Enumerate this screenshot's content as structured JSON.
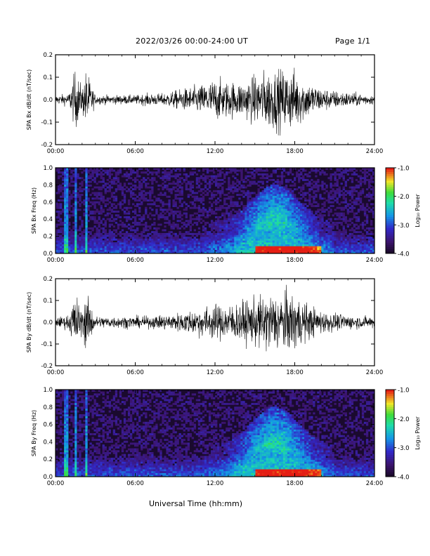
{
  "header": {
    "title": "2022/03/26  00:00-24:00 UT",
    "page": "Page 1/1"
  },
  "xlabel_bottom": "Universal Time (hh:mm)",
  "colors": {
    "background": "#ffffff",
    "trace": "#000000",
    "spectrogram_background": "#1a0a2e"
  },
  "chart_data": [
    {
      "type": "line",
      "title": "",
      "ylabel": "SPA Bx dB/dt (nT/sec)",
      "xlabel": "",
      "x_tick_labels": [
        "00:00",
        "06:00",
        "12:00",
        "18:00",
        "24:00"
      ],
      "xlim_hours": [
        0,
        24
      ],
      "ylim": [
        -0.2,
        0.2
      ],
      "y_ticks": [
        -0.2,
        -0.1,
        0.0,
        0.1,
        0.2
      ],
      "y_tick_labels": [
        "-0.2",
        "-0.1",
        "0.0",
        "0.1",
        "0.2"
      ],
      "series": [
        {
          "x_hours": [
            0,
            1,
            1.5,
            2,
            2.3,
            3,
            4,
            5,
            6,
            7,
            8,
            9,
            10,
            11,
            12,
            13,
            14,
            15,
            16,
            17,
            17.5,
            18,
            19,
            20,
            21,
            22,
            23,
            24
          ],
          "amplitude": [
            0.03,
            0.04,
            0.2,
            0.08,
            0.2,
            0.03,
            0.03,
            0.03,
            0.03,
            0.04,
            0.04,
            0.06,
            0.08,
            0.1,
            0.14,
            0.12,
            0.12,
            0.16,
            0.2,
            0.2,
            0.2,
            0.2,
            0.12,
            0.08,
            0.06,
            0.05,
            0.04,
            0.03
          ]
        }
      ]
    },
    {
      "type": "heatmap",
      "title": "",
      "ylabel": "SPA Bx Freq (Hz)",
      "xlabel": "",
      "x_tick_labels": [
        "00:00",
        "06:00",
        "12:00",
        "18:00",
        "24:00"
      ],
      "xlim_hours": [
        0,
        24
      ],
      "ylim": [
        0.0,
        1.0
      ],
      "y_tick_labels": [
        "0.0",
        "0.2",
        "0.4",
        "0.6",
        "0.8",
        "1.0"
      ],
      "colorbar": {
        "label": "Log₁₀ Power",
        "range": [
          -4.0,
          -1.0
        ],
        "tick_labels": [
          "-1.0",
          "-2.0",
          "-3.0",
          "-4.0"
        ]
      },
      "features": {
        "vertical_streaks_hours": [
          0.8,
          1.5,
          2.3
        ],
        "arc_center_hours": 16.5,
        "arc_peak_freq_hz": 0.45
      }
    },
    {
      "type": "line",
      "title": "",
      "ylabel": "SPA By dB/dt (nT/sec)",
      "xlabel": "",
      "x_tick_labels": [
        "00:00",
        "06:00",
        "12:00",
        "18:00",
        "24:00"
      ],
      "xlim_hours": [
        0,
        24
      ],
      "ylim": [
        -0.2,
        0.2
      ],
      "y_ticks": [
        -0.2,
        -0.1,
        0.0,
        0.1,
        0.2
      ],
      "y_tick_labels": [
        "-0.2",
        "-0.1",
        "0.0",
        "0.1",
        "0.2"
      ],
      "series": [
        {
          "x_hours": [
            0,
            1,
            1.5,
            2,
            2.3,
            3,
            4,
            5,
            6,
            7,
            8,
            9,
            10,
            11,
            12,
            13,
            14,
            15,
            16,
            17,
            17.5,
            18,
            19,
            20,
            21,
            22,
            23,
            24
          ],
          "amplitude": [
            0.03,
            0.05,
            0.2,
            0.08,
            0.2,
            0.04,
            0.04,
            0.04,
            0.04,
            0.04,
            0.05,
            0.06,
            0.08,
            0.1,
            0.12,
            0.12,
            0.14,
            0.16,
            0.2,
            0.2,
            0.2,
            0.2,
            0.12,
            0.08,
            0.06,
            0.05,
            0.04,
            0.04
          ]
        }
      ]
    },
    {
      "type": "heatmap",
      "title": "",
      "ylabel": "SPA By Freq (Hz)",
      "xlabel": "",
      "x_tick_labels": [
        "00:00",
        "06:00",
        "12:00",
        "18:00",
        "24:00"
      ],
      "xlim_hours": [
        0,
        24
      ],
      "ylim": [
        0.0,
        1.0
      ],
      "y_tick_labels": [
        "0.0",
        "0.2",
        "0.4",
        "0.6",
        "0.8",
        "1.0"
      ],
      "colorbar": {
        "label": "Log₁₀ Power",
        "range": [
          -4.0,
          -1.0
        ],
        "tick_labels": [
          "-1.0",
          "-2.0",
          "-3.0",
          "-4.0"
        ]
      },
      "features": {
        "vertical_streaks_hours": [
          0.8,
          1.5,
          2.3
        ],
        "arc_center_hours": 16.5,
        "arc_peak_freq_hz": 0.45
      }
    }
  ]
}
